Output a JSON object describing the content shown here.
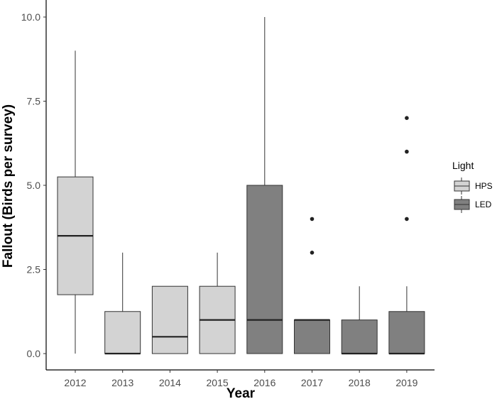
{
  "chart_data": {
    "type": "boxplot",
    "title": "",
    "xlabel": "Year",
    "ylabel": "Fallout (Birds per survey)",
    "ylim": [
      0,
      10
    ],
    "yticks": [
      "0.0",
      "2.5",
      "5.0",
      "7.5",
      "10.0"
    ],
    "categories": [
      "2012",
      "2013",
      "2014",
      "2015",
      "2016",
      "2017",
      "2018",
      "2019"
    ],
    "grid": false,
    "legend": {
      "title": "Light",
      "position": "right",
      "entries": [
        {
          "label": "HPS",
          "color": "#d3d3d3"
        },
        {
          "label": "LED",
          "color": "#808080"
        }
      ]
    },
    "boxes": [
      {
        "x": "2012",
        "group": "HPS",
        "min": 0,
        "q1": 1.75,
        "median": 3.5,
        "q3": 5.25,
        "max": 9,
        "outliers": []
      },
      {
        "x": "2013",
        "group": "HPS",
        "min": 0,
        "q1": 0,
        "median": 0,
        "q3": 1.25,
        "max": 3,
        "outliers": []
      },
      {
        "x": "2014",
        "group": "HPS",
        "min": 0,
        "q1": 0,
        "median": 0.5,
        "q3": 2,
        "max": 2,
        "outliers": []
      },
      {
        "x": "2015",
        "group": "HPS",
        "min": 0,
        "q1": 0,
        "median": 1,
        "q3": 2,
        "max": 3,
        "outliers": []
      },
      {
        "x": "2016",
        "group": "LED",
        "min": 0,
        "q1": 0,
        "median": 1,
        "q3": 5,
        "max": 10,
        "outliers": []
      },
      {
        "x": "2017",
        "group": "LED",
        "min": 0,
        "q1": 0,
        "median": 1,
        "q3": 1,
        "max": 1,
        "outliers": [
          3,
          4
        ]
      },
      {
        "x": "2018",
        "group": "LED",
        "min": 0,
        "q1": 0,
        "median": 0,
        "q3": 1,
        "max": 2,
        "outliers": []
      },
      {
        "x": "2019",
        "group": "LED",
        "min": 0,
        "q1": 0,
        "median": 0,
        "q3": 1.25,
        "max": 2,
        "outliers": [
          4,
          6,
          7
        ]
      }
    ]
  }
}
